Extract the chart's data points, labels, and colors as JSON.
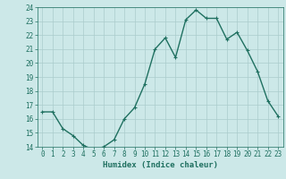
{
  "x": [
    0,
    1,
    2,
    3,
    4,
    5,
    6,
    7,
    8,
    9,
    10,
    11,
    12,
    13,
    14,
    15,
    16,
    17,
    18,
    19,
    20,
    21,
    22,
    23
  ],
  "y": [
    16.5,
    16.5,
    15.3,
    14.8,
    14.1,
    13.8,
    14.0,
    14.5,
    16.0,
    16.8,
    18.5,
    21.0,
    21.8,
    20.4,
    23.1,
    23.8,
    23.2,
    23.2,
    21.7,
    22.2,
    20.9,
    19.4,
    17.3,
    16.2
  ],
  "xlabel": "Humidex (Indice chaleur)",
  "ylim": [
    14,
    24
  ],
  "xlim": [
    -0.5,
    23.5
  ],
  "yticks": [
    14,
    15,
    16,
    17,
    18,
    19,
    20,
    21,
    22,
    23,
    24
  ],
  "xticks": [
    0,
    1,
    2,
    3,
    4,
    5,
    6,
    7,
    8,
    9,
    10,
    11,
    12,
    13,
    14,
    15,
    16,
    17,
    18,
    19,
    20,
    21,
    22,
    23
  ],
  "line_color": "#1f7060",
  "marker_color": "#1f7060",
  "bg_color": "#cce8e8",
  "grid_color": "#aacccc",
  "label_color": "#1f7060",
  "tick_color": "#1f7060",
  "marker_size": 2.0,
  "line_width": 1.0,
  "label_fontsize": 6.5,
  "tick_fontsize": 5.5
}
